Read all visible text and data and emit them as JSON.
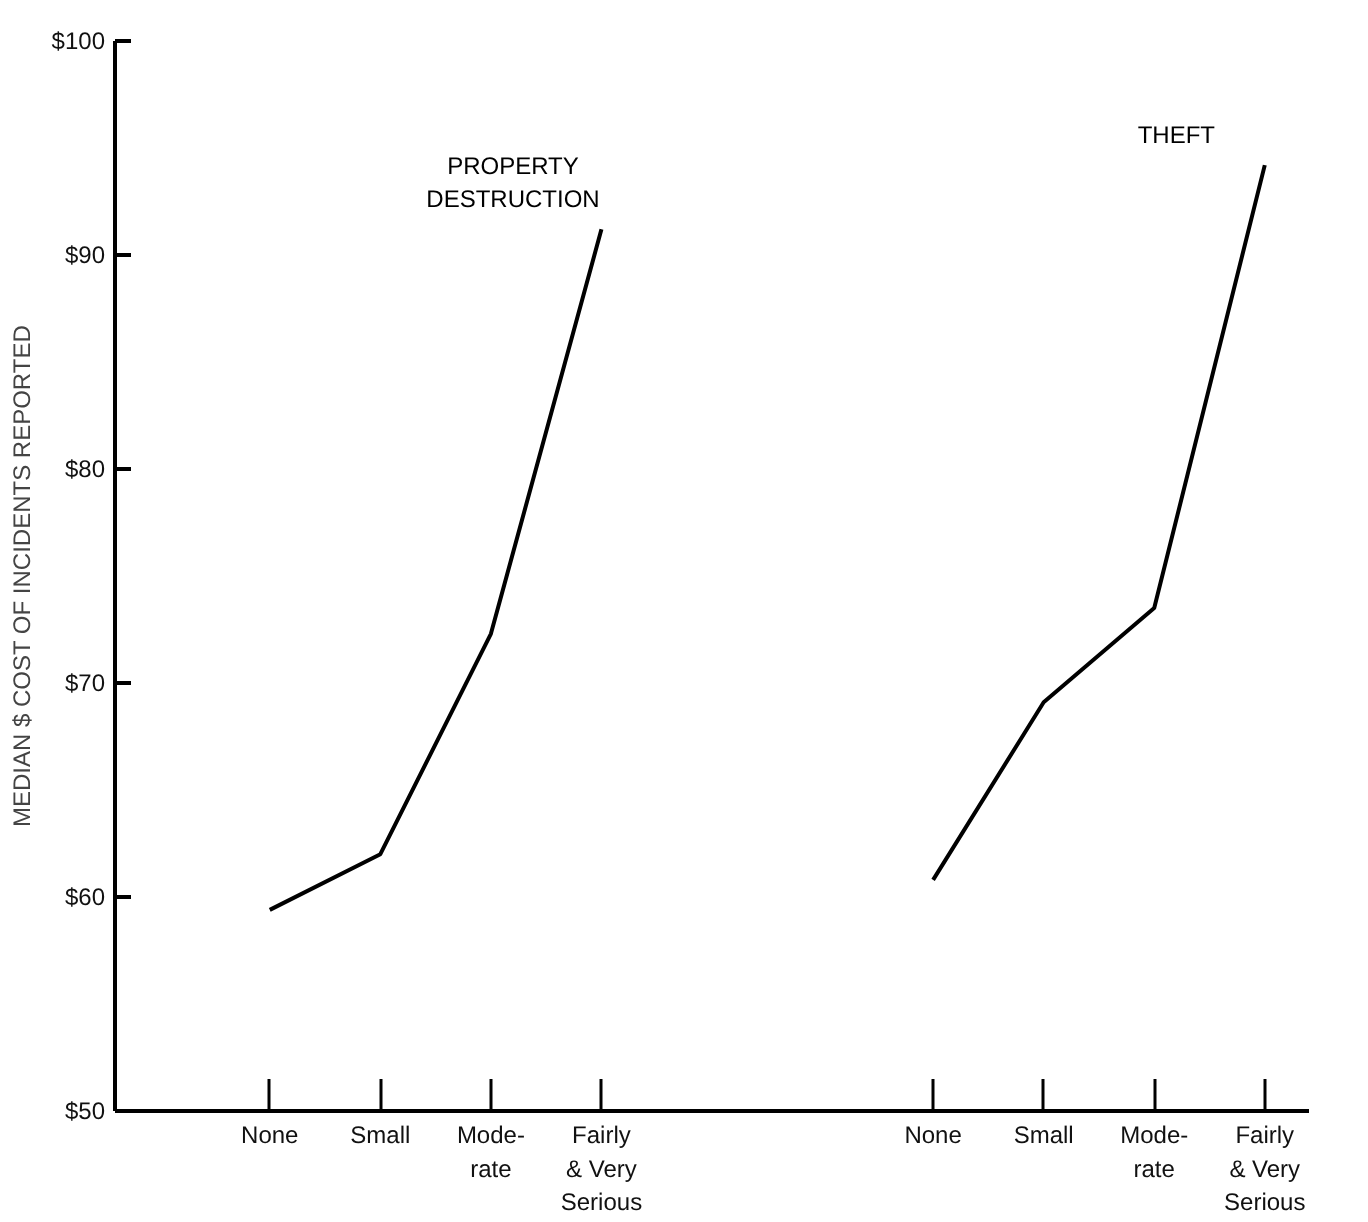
{
  "chart_data": {
    "type": "line",
    "ylabel": "MEDIAN $ COST OF INCIDENTS REPORTED",
    "categories": [
      "None",
      "Small",
      "Mode-\nrate",
      "Fairly\n& Very\nSerious",
      null,
      null,
      "None",
      "Small",
      "Mode-\nrate",
      "Fairly\n& Very\nSerious"
    ],
    "series": [
      {
        "name": "PROPERTY\nDESTRUCTION",
        "color": "#000000",
        "values": [
          59.4,
          62.0,
          72.3,
          91.2,
          null,
          null,
          null,
          null,
          null,
          null
        ]
      },
      {
        "name": "THEFT",
        "color": "#000000",
        "values": [
          null,
          null,
          null,
          null,
          null,
          null,
          60.8,
          69.1,
          73.5,
          94.2
        ]
      }
    ],
    "ylim": [
      50,
      100
    ],
    "yticks": [
      {
        "value": 50,
        "label": "$50"
      },
      {
        "value": 60,
        "label": "$60"
      },
      {
        "value": 70,
        "label": "$70"
      },
      {
        "value": 80,
        "label": "$80"
      },
      {
        "value": 90,
        "label": "$90"
      },
      {
        "value": 100,
        "label": "$100"
      }
    ],
    "grid": false,
    "marker": "none",
    "line_style": "solid"
  }
}
